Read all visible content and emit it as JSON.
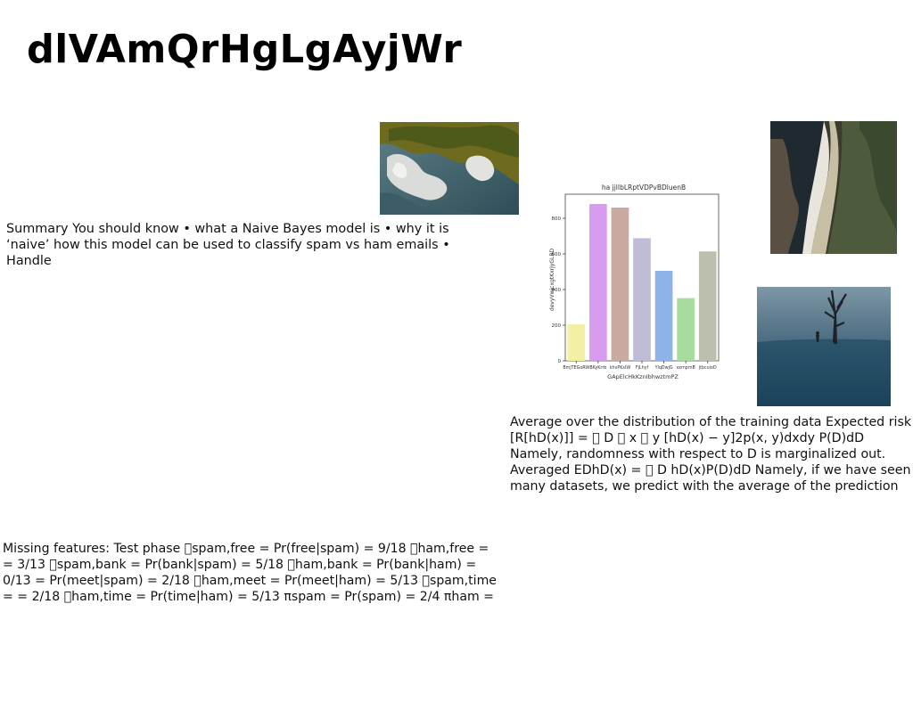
{
  "slide": {
    "title": "dlVAmQrHgLgAyjWr",
    "summary_text": "Summary You should know • what a Naive Bayes model is • why it is ‘naive’ how this model can be used to classify spam vs ham emails • Handle",
    "risk_text": "Average over the distribution of the training data Expected risk [R[hD(x)]] = \u0000 D \u0000 x \u0000 y [hD(x) − y]2p(x, y)dxdy P(D)dD Namely, randomness with respect to D is marginalized out. Averaged EDhD(x) = \u0000 D hD(x)P(D)dD Namely, if we have seen many datasets, we predict with the average of the prediction",
    "missing_text": "Missing features: Test phase \u0000spam,free = Pr(free|spam) = 9/18 \u0000ham,free = = 3/13 \u0000spam,bank = Pr(bank|spam) = 5/18 \u0000ham,bank = Pr(bank|ham) = 0/13 = Pr(meet|spam) = 2/18 \u0000ham,meet = Pr(meet|ham) = 5/13 \u0000spam,time = = 2/18 \u0000ham,time = Pr(time|ham) = 5/13 πspam = Pr(spam) = 2/4 πham ="
  },
  "images": {
    "island": "aerial-island-photo",
    "coast": "aerial-coastline-photo",
    "fog": "foggy-field-tree-photo"
  },
  "chart_data": {
    "type": "bar",
    "title": "ha jjlIbLRptVDPvBDluenB",
    "xlabel": "GApElcHkKznIbhwztmPZ",
    "ylabel": "devyVwjcxgtKxrjyGLBD",
    "categories": [
      "BmjTEGoRW",
      "BKyKrrb",
      "khvPKsIW",
      "FjLhyf",
      "YlqDwjG",
      "xxmpmB",
      "jtbcuioD"
    ],
    "values": [
      205,
      880,
      860,
      688,
      505,
      352,
      614
    ],
    "colors": [
      "#f3f0a4",
      "#d79cf0",
      "#c8aaa2",
      "#bfbcd6",
      "#8db3e8",
      "#a6dc9d",
      "#bdbfae"
    ],
    "ylim": [
      0,
      935
    ],
    "yticks": [
      0,
      200,
      400,
      600,
      800
    ],
    "grid": false
  }
}
